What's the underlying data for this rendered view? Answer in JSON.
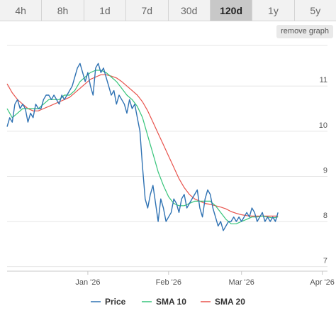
{
  "tabs": [
    {
      "label": "4h",
      "active": false
    },
    {
      "label": "8h",
      "active": false
    },
    {
      "label": "1d",
      "active": false
    },
    {
      "label": "7d",
      "active": false
    },
    {
      "label": "30d",
      "active": false
    },
    {
      "label": "120d",
      "active": true
    },
    {
      "label": "1y",
      "active": false
    },
    {
      "label": "5y",
      "active": false
    }
  ],
  "remove_graph_label": "remove graph",
  "chart_data": {
    "type": "line",
    "ylim": [
      6.9,
      11.9
    ],
    "y_ticks": [
      7,
      8,
      9,
      10,
      11
    ],
    "x_ticks": [
      {
        "label": "Jan '26",
        "day": 31
      },
      {
        "label": "Feb '26",
        "day": 62
      },
      {
        "label": "Mar '26",
        "day": 90
      },
      {
        "label": "Apr '26",
        "day": 121
      }
    ],
    "x_range_days": [
      0,
      123
    ],
    "grid": true,
    "legend_position": "bottom",
    "series": [
      {
        "name": "Price",
        "color": "#2f72b3",
        "points": [
          [
            0,
            10.1
          ],
          [
            1,
            10.3
          ],
          [
            2,
            10.2
          ],
          [
            3,
            10.6
          ],
          [
            4,
            10.7
          ],
          [
            5,
            10.5
          ],
          [
            6,
            10.6
          ],
          [
            7,
            10.5
          ],
          [
            8,
            10.2
          ],
          [
            9,
            10.4
          ],
          [
            10,
            10.3
          ],
          [
            11,
            10.6
          ],
          [
            12,
            10.5
          ],
          [
            13,
            10.5
          ],
          [
            14,
            10.7
          ],
          [
            15,
            10.8
          ],
          [
            16,
            10.8
          ],
          [
            17,
            10.7
          ],
          [
            18,
            10.8
          ],
          [
            19,
            10.7
          ],
          [
            20,
            10.6
          ],
          [
            21,
            10.8
          ],
          [
            22,
            10.7
          ],
          [
            23,
            10.8
          ],
          [
            24,
            10.9
          ],
          [
            25,
            11.0
          ],
          [
            26,
            11.2
          ],
          [
            27,
            11.4
          ],
          [
            28,
            11.5
          ],
          [
            29,
            11.3
          ],
          [
            30,
            11.1
          ],
          [
            31,
            11.3
          ],
          [
            32,
            11.0
          ],
          [
            33,
            10.8
          ],
          [
            34,
            11.4
          ],
          [
            35,
            11.5
          ],
          [
            36,
            11.3
          ],
          [
            37,
            11.4
          ],
          [
            38,
            11.2
          ],
          [
            39,
            11.0
          ],
          [
            40,
            10.8
          ],
          [
            41,
            10.9
          ],
          [
            42,
            10.6
          ],
          [
            43,
            10.8
          ],
          [
            44,
            10.7
          ],
          [
            45,
            10.6
          ],
          [
            46,
            10.4
          ],
          [
            47,
            10.7
          ],
          [
            48,
            10.5
          ],
          [
            49,
            10.6
          ],
          [
            50,
            10.3
          ],
          [
            51,
            10.0
          ],
          [
            52,
            9.2
          ],
          [
            53,
            8.5
          ],
          [
            54,
            8.3
          ],
          [
            55,
            8.6
          ],
          [
            56,
            8.8
          ],
          [
            57,
            8.4
          ],
          [
            58,
            8.0
          ],
          [
            59,
            8.5
          ],
          [
            60,
            8.3
          ],
          [
            61,
            8.0
          ],
          [
            62,
            8.1
          ],
          [
            63,
            8.2
          ],
          [
            64,
            8.5
          ],
          [
            65,
            8.4
          ],
          [
            66,
            8.2
          ],
          [
            67,
            8.5
          ],
          [
            68,
            8.6
          ],
          [
            69,
            8.3
          ],
          [
            70,
            8.4
          ],
          [
            71,
            8.5
          ],
          [
            72,
            8.6
          ],
          [
            73,
            8.7
          ],
          [
            74,
            8.3
          ],
          [
            75,
            8.1
          ],
          [
            76,
            8.5
          ],
          [
            77,
            8.7
          ],
          [
            78,
            8.6
          ],
          [
            79,
            8.3
          ],
          [
            80,
            8.1
          ],
          [
            81,
            7.9
          ],
          [
            82,
            8.0
          ],
          [
            83,
            7.8
          ],
          [
            84,
            7.9
          ],
          [
            85,
            8.0
          ],
          [
            86,
            8.0
          ],
          [
            87,
            8.1
          ],
          [
            88,
            8.0
          ],
          [
            89,
            8.1
          ],
          [
            90,
            8.0
          ],
          [
            91,
            8.1
          ],
          [
            92,
            8.2
          ],
          [
            93,
            8.1
          ],
          [
            94,
            8.3
          ],
          [
            95,
            8.2
          ],
          [
            96,
            8.0
          ],
          [
            97,
            8.1
          ],
          [
            98,
            8.2
          ],
          [
            99,
            8.0
          ],
          [
            100,
            8.1
          ],
          [
            101,
            8.0
          ],
          [
            102,
            8.1
          ],
          [
            103,
            8.0
          ],
          [
            104,
            8.2
          ]
        ]
      },
      {
        "name": "SMA 10",
        "color": "#36c47a",
        "points": [
          [
            0,
            10.5
          ],
          [
            2,
            10.3
          ],
          [
            4,
            10.4
          ],
          [
            6,
            10.5
          ],
          [
            8,
            10.5
          ],
          [
            10,
            10.5
          ],
          [
            12,
            10.5
          ],
          [
            14,
            10.6
          ],
          [
            16,
            10.7
          ],
          [
            18,
            10.7
          ],
          [
            20,
            10.7
          ],
          [
            22,
            10.8
          ],
          [
            24,
            10.8
          ],
          [
            26,
            10.9
          ],
          [
            28,
            11.1
          ],
          [
            30,
            11.2
          ],
          [
            32,
            11.3
          ],
          [
            34,
            11.35
          ],
          [
            36,
            11.35
          ],
          [
            38,
            11.3
          ],
          [
            40,
            11.2
          ],
          [
            42,
            11.1
          ],
          [
            44,
            10.95
          ],
          [
            46,
            10.8
          ],
          [
            48,
            10.7
          ],
          [
            50,
            10.55
          ],
          [
            52,
            10.3
          ],
          [
            54,
            9.9
          ],
          [
            56,
            9.5
          ],
          [
            58,
            9.1
          ],
          [
            60,
            8.8
          ],
          [
            62,
            8.55
          ],
          [
            64,
            8.4
          ],
          [
            66,
            8.35
          ],
          [
            68,
            8.35
          ],
          [
            70,
            8.4
          ],
          [
            72,
            8.45
          ],
          [
            74,
            8.45
          ],
          [
            76,
            8.45
          ],
          [
            78,
            8.45
          ],
          [
            80,
            8.35
          ],
          [
            82,
            8.2
          ],
          [
            84,
            8.05
          ],
          [
            86,
            7.95
          ],
          [
            88,
            7.95
          ],
          [
            90,
            8.0
          ],
          [
            92,
            8.05
          ],
          [
            94,
            8.1
          ],
          [
            96,
            8.1
          ],
          [
            98,
            8.12
          ],
          [
            100,
            8.1
          ],
          [
            102,
            8.08
          ],
          [
            104,
            8.1
          ]
        ]
      },
      {
        "name": "SMA 20",
        "color": "#e8534c",
        "points": [
          [
            0,
            11.05
          ],
          [
            2,
            10.85
          ],
          [
            4,
            10.7
          ],
          [
            6,
            10.6
          ],
          [
            8,
            10.5
          ],
          [
            10,
            10.45
          ],
          [
            12,
            10.45
          ],
          [
            14,
            10.5
          ],
          [
            16,
            10.55
          ],
          [
            18,
            10.6
          ],
          [
            20,
            10.65
          ],
          [
            22,
            10.7
          ],
          [
            24,
            10.75
          ],
          [
            26,
            10.85
          ],
          [
            28,
            10.95
          ],
          [
            30,
            11.05
          ],
          [
            32,
            11.15
          ],
          [
            34,
            11.2
          ],
          [
            36,
            11.25
          ],
          [
            38,
            11.25
          ],
          [
            40,
            11.22
          ],
          [
            42,
            11.18
          ],
          [
            44,
            11.1
          ],
          [
            46,
            11.0
          ],
          [
            48,
            10.9
          ],
          [
            50,
            10.8
          ],
          [
            52,
            10.65
          ],
          [
            54,
            10.45
          ],
          [
            56,
            10.2
          ],
          [
            58,
            9.95
          ],
          [
            60,
            9.7
          ],
          [
            62,
            9.45
          ],
          [
            64,
            9.2
          ],
          [
            66,
            8.95
          ],
          [
            68,
            8.75
          ],
          [
            70,
            8.6
          ],
          [
            72,
            8.5
          ],
          [
            74,
            8.45
          ],
          [
            76,
            8.4
          ],
          [
            78,
            8.38
          ],
          [
            80,
            8.35
          ],
          [
            82,
            8.32
          ],
          [
            84,
            8.28
          ],
          [
            86,
            8.22
          ],
          [
            88,
            8.18
          ],
          [
            90,
            8.15
          ],
          [
            92,
            8.13
          ],
          [
            94,
            8.12
          ],
          [
            96,
            8.12
          ],
          [
            98,
            8.12
          ],
          [
            100,
            8.12
          ],
          [
            102,
            8.12
          ],
          [
            104,
            8.12
          ]
        ]
      }
    ]
  }
}
